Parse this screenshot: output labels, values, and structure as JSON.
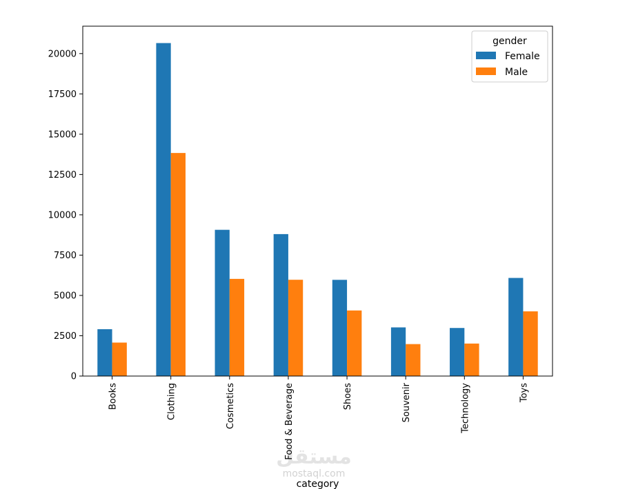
{
  "chart_data": {
    "type": "bar",
    "title": "",
    "xlabel": "category",
    "ylabel": "",
    "categories": [
      "Books",
      "Clothing",
      "Cosmetics",
      "Food & Beverage",
      "Shoes",
      "Souvenir",
      "Technology",
      "Toys"
    ],
    "series": [
      {
        "name": "Female",
        "color": "#1f77b4",
        "values": [
          2906,
          20652,
          9070,
          8804,
          5967,
          3017,
          2981,
          6085
        ]
      },
      {
        "name": "Male",
        "color": "#ff7f0e",
        "values": [
          2075,
          13835,
          6027,
          5972,
          4067,
          1982,
          2015,
          4012
        ]
      }
    ],
    "ylim": [
      0,
      21700
    ],
    "yticks": [
      0,
      2500,
      5000,
      7500,
      10000,
      12500,
      15000,
      17500,
      20000
    ],
    "legend": {
      "title": "gender",
      "position": "top-right"
    },
    "grid": false
  },
  "watermark": {
    "arabic": "مستقل",
    "latin": "mostaql.com"
  }
}
